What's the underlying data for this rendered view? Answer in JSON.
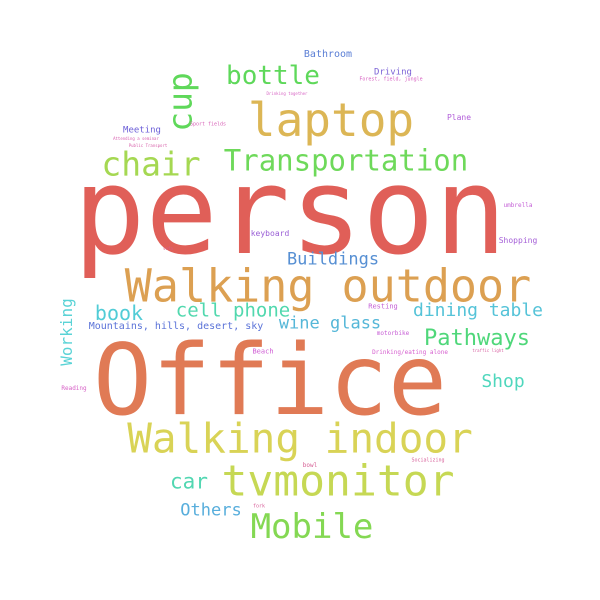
{
  "words": [
    {
      "text": "person",
      "color": "#e05f58"
    },
    {
      "text": "Office",
      "color": "#e07a55"
    },
    {
      "text": "Walking outdoor",
      "color": "#dca052"
    },
    {
      "text": "Walking indoor",
      "color": "#d9d356"
    },
    {
      "text": "laptop",
      "color": "#dcb655"
    },
    {
      "text": "tvmonitor",
      "color": "#c6d854"
    },
    {
      "text": "Transportation",
      "color": "#6ed95a"
    },
    {
      "text": "Mobile",
      "color": "#84d853"
    },
    {
      "text": "chair",
      "color": "#a5d852"
    },
    {
      "text": "bottle",
      "color": "#5ed85a"
    },
    {
      "text": "cup",
      "color": "#5fd85a"
    },
    {
      "text": "Pathways",
      "color": "#4fd77a"
    },
    {
      "text": "car",
      "color": "#52d7b2"
    },
    {
      "text": "cell phone",
      "color": "#51d8ae"
    },
    {
      "text": "book",
      "color": "#51ccd6"
    },
    {
      "text": "wine glass",
      "color": "#55b7d8"
    },
    {
      "text": "dining table",
      "color": "#55c3d8"
    },
    {
      "text": "Buildings",
      "color": "#568fd3"
    },
    {
      "text": "Shop",
      "color": "#4fd7bd"
    },
    {
      "text": "Others",
      "color": "#58aedc"
    },
    {
      "text": "Working",
      "color": "#5ad3d6"
    },
    {
      "text": "Mountains, hills, desert, sky",
      "color": "#5b73d8"
    },
    {
      "text": "Bathroom",
      "color": "#5a7ed5"
    },
    {
      "text": "Driving",
      "color": "#7b62d6"
    },
    {
      "text": "Meeting",
      "color": "#6c5fd8"
    },
    {
      "text": "keyboard",
      "color": "#9a5fd6"
    },
    {
      "text": "Shopping",
      "color": "#a45ed7"
    },
    {
      "text": "Plane",
      "color": "#b25ed9"
    },
    {
      "text": "umbrella",
      "color": "#c45fd6"
    },
    {
      "text": "Resting",
      "color": "#c45fd6"
    },
    {
      "text": "motorbike",
      "color": "#c75fd5"
    },
    {
      "text": "Beach",
      "color": "#cf5dd4"
    },
    {
      "text": "Drinking/eating alone",
      "color": "#d65fcf"
    },
    {
      "text": "Reading",
      "color": "#d760c6"
    },
    {
      "text": "Forest, field, jungle",
      "color": "#d65ec0"
    },
    {
      "text": "Sport fields",
      "color": "#d75fb6"
    },
    {
      "text": "Drinking together",
      "color": "#d765c4"
    },
    {
      "text": "Attending a seminar",
      "color": "#d860b0"
    },
    {
      "text": "Public Transport",
      "color": "#d75fa9"
    },
    {
      "text": "traffic light",
      "color": "#d75d9f"
    },
    {
      "text": "bowl",
      "color": "#d65f94"
    },
    {
      "text": "Socializing",
      "color": "#d75f9a"
    },
    {
      "text": "fork",
      "color": "#d7609a"
    },
    {
      "text": "sofa",
      "color": "#d75f8c"
    }
  ]
}
